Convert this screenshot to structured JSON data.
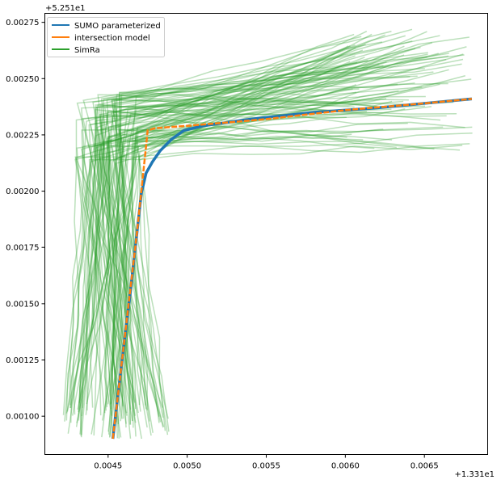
{
  "chart_data": {
    "type": "line",
    "x_offset_label": "+1.331e1",
    "y_offset_label": "+5.251e1",
    "xlim": [
      0.0041,
      0.0069
    ],
    "ylim": [
      0.00083,
      0.00279
    ],
    "x_ticks": [
      0.0045,
      0.005,
      0.0055,
      0.006,
      0.0065
    ],
    "x_tick_labels": [
      "0.0045",
      "0.0050",
      "0.0055",
      "0.0060",
      "0.0065"
    ],
    "y_ticks": [
      0.001,
      0.00125,
      0.0015,
      0.00175,
      0.002,
      0.00225,
      0.0025,
      0.00275
    ],
    "y_tick_labels": [
      "0.00100",
      "0.00125",
      "0.00150",
      "0.00175",
      "0.00200",
      "0.00225",
      "0.00250",
      "0.00275"
    ],
    "grid": false,
    "legend_position": "top-left",
    "colors": {
      "sumo": "#1f77b4",
      "intersection": "#ff7f0e",
      "simra": "#2ca02c"
    },
    "series": [
      {
        "name": "SUMO parameterized",
        "x": [
          0.00453,
          0.00458,
          0.00464,
          0.00468,
          0.00471,
          0.00474,
          0.00478,
          0.00483,
          0.0049,
          0.00498,
          0.0051,
          0.0054,
          0.0058,
          0.0062,
          0.0065,
          0.0068
        ],
        "y": [
          0.0009,
          0.0012,
          0.00155,
          0.0018,
          0.00199,
          0.00208,
          0.00213,
          0.00218,
          0.00223,
          0.00227,
          0.00229,
          0.00232,
          0.00235,
          0.00237,
          0.00239,
          0.00241
        ]
      },
      {
        "name": "intersection model",
        "x": [
          0.00453,
          0.00458,
          0.00463,
          0.00468,
          0.00471,
          0.00474,
          0.00475,
          0.0048,
          0.005,
          0.0055,
          0.006,
          0.0065,
          0.0068
        ],
        "y": [
          0.0009,
          0.0012,
          0.0015,
          0.0018,
          0.002,
          0.0022,
          0.00227,
          0.00228,
          0.00229,
          0.00232,
          0.00236,
          0.00239,
          0.00241
        ]
      }
    ],
    "simra_label": "SimRa",
    "simra_params": {
      "start_x": [
        0.0042,
        0.0049
      ],
      "start_y": [
        0.0009,
        0.00106
      ],
      "corner_x": [
        0.00428,
        0.0047
      ],
      "corner_y": [
        0.00212,
        0.00244
      ],
      "end_x": [
        0.006,
        0.00682
      ],
      "end_y": [
        0.00218,
        0.00272
      ]
    }
  }
}
